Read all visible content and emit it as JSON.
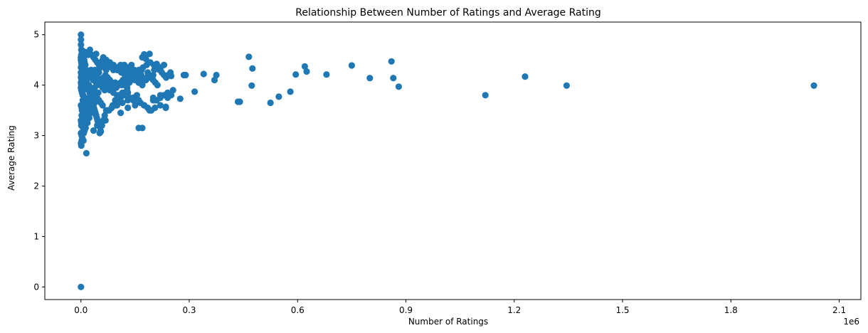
{
  "chart_data": {
    "type": "scatter",
    "title": "Relationship Between Number of Ratings and Average Rating",
    "xlabel": "Number of Ratings",
    "ylabel": "Average Rating",
    "x_offset_label": "1e6",
    "xlim": [
      -0.1,
      2.16
    ],
    "ylim": [
      -0.25,
      5.25
    ],
    "x_ticks": [
      0.0,
      0.3,
      0.6,
      0.9,
      1.2,
      1.5,
      1.8,
      2.1
    ],
    "x_tick_labels": [
      "0.0",
      "0.3",
      "0.6",
      "0.9",
      "1.2",
      "1.5",
      "1.8",
      "2.1"
    ],
    "y_ticks": [
      0,
      1,
      2,
      3,
      4,
      5
    ],
    "y_tick_labels": [
      "0",
      "1",
      "2",
      "3",
      "4",
      "5"
    ],
    "grid": false,
    "marker_color": "#1f77b4",
    "series": [
      {
        "x": [
          0.0,
          0.0,
          0.0,
          0.0,
          0.001,
          0.002,
          0.003,
          0.005,
          0.008,
          0.012,
          0.02,
          0.004,
          0.006,
          0.009,
          0.01,
          0.001,
          0.002,
          0.015,
          0.025,
          0.03,
          0.035,
          0.04,
          0.045,
          0.05,
          0.055,
          0.06,
          0.065,
          0.07,
          0.075,
          0.08,
          0.085,
          0.09,
          0.095,
          0.1,
          0.105,
          0.11,
          0.115,
          0.12,
          0.125,
          0.13,
          0.135,
          0.14,
          0.002,
          0.004,
          0.006,
          0.008,
          0.01,
          0.012,
          0.014,
          0.016,
          0.018,
          0.02,
          0.022,
          0.024,
          0.026,
          0.028,
          0.03,
          0.032,
          0.034,
          0.036,
          0.038,
          0.04,
          0.042,
          0.044,
          0.046,
          0.048,
          0.05,
          0.01,
          0.02,
          0.03,
          0.04,
          0.05,
          0.06,
          0.07,
          0.08,
          0.09,
          0.1,
          0.11,
          0.12,
          0.13,
          0.015,
          0.025,
          0.035,
          0.045,
          0.055,
          0.065,
          0.075,
          0.085,
          0.001,
          0.003,
          0.005,
          0.007,
          0.009,
          0.011,
          0.013,
          0.001,
          0.002,
          0.003,
          0.004,
          0.005,
          0.006,
          0.007,
          0.008,
          0.009,
          0.01,
          0.011,
          0.012,
          0.013,
          0.014,
          0.016,
          0.018,
          0.022,
          0.026,
          0.03,
          0.034,
          0.038,
          0.042,
          0.046,
          0.05,
          0.054,
          0.058,
          0.062,
          0.066,
          0.07,
          0.002,
          0.006,
          0.01,
          0.014,
          0.018,
          0.022,
          0.026,
          0.03,
          0.034,
          0.038,
          0.042,
          0.046,
          0.05,
          0.054,
          0.058,
          0.062,
          0.003,
          0.008,
          0.013,
          0.018,
          0.023,
          0.028,
          0.033,
          0.038,
          0.043,
          0.048,
          0.004,
          0.009,
          0.014,
          0.019,
          0.024,
          0.029,
          0.034,
          0.039,
          0.0,
          0.001,
          0.002,
          0.004,
          0.007,
          0.012,
          0.02,
          0.028,
          0.0,
          0.001,
          0.003,
          0.006,
          0.011,
          0.017,
          0.024,
          0.0,
          0.002,
          0.005,
          0.009,
          0.014,
          0.02,
          0.0,
          0.001,
          0.003,
          0.006,
          0.01,
          0.0,
          0.002,
          0.004,
          0.007,
          0.0,
          0.001,
          0.003,
          0.0,
          0.001,
          0.0,
          0.0,
          0.0,
          0.0,
          0.001,
          0.003,
          0.001,
          0.002,
          0.006,
          0.012,
          0.015,
          0.005,
          0.02,
          0.025,
          0.03,
          0.035,
          0.04,
          0.045,
          0.05,
          0.055,
          0.06,
          0.065,
          0.07,
          0.028,
          0.032,
          0.036,
          0.042,
          0.048,
          0.054,
          0.06,
          0.066,
          0.072,
          0.078,
          0.022,
          0.027,
          0.033,
          0.038,
          0.044,
          0.05,
          0.056,
          0.062,
          0.068,
          0.074,
          0.08,
          0.086,
          0.092,
          0.098,
          0.104,
          0.11,
          0.116,
          0.122,
          0.128,
          0.134,
          0.14,
          0.146,
          0.152,
          0.158,
          0.164,
          0.17,
          0.176,
          0.182,
          0.188,
          0.194,
          0.2,
          0.206,
          0.212,
          0.218,
          0.224,
          0.23,
          0.236,
          0.242,
          0.248,
          0.09,
          0.1,
          0.11,
          0.12,
          0.13,
          0.14,
          0.15,
          0.16,
          0.17,
          0.18,
          0.19,
          0.2,
          0.21,
          0.22,
          0.23,
          0.24,
          0.095,
          0.105,
          0.115,
          0.125,
          0.135,
          0.145,
          0.155,
          0.165,
          0.175,
          0.185,
          0.195,
          0.085,
          0.1,
          0.115,
          0.13,
          0.145,
          0.16,
          0.175,
          0.19,
          0.205,
          0.22,
          0.235,
          0.078,
          0.088,
          0.098,
          0.108,
          0.118,
          0.128,
          0.138,
          0.148,
          0.158,
          0.168,
          0.072,
          0.082,
          0.092,
          0.102,
          0.112,
          0.122,
          0.132,
          0.142,
          0.152,
          0.162,
          0.172,
          0.182,
          0.192,
          0.202,
          0.212,
          0.095,
          0.105,
          0.075,
          0.065,
          0.058,
          0.048,
          0.052,
          0.068,
          0.11,
          0.13,
          0.15,
          0.17,
          0.2,
          0.22,
          0.24,
          0.25,
          0.23,
          0.21,
          0.19,
          0.17,
          0.18,
          0.16,
          0.14,
          0.12,
          0.1,
          0.095,
          0.113,
          0.131,
          0.149,
          0.167,
          0.185,
          0.203,
          0.221,
          0.025,
          0.042,
          0.015,
          0.035,
          0.045,
          0.055,
          0.065,
          0.015,
          0.005,
          0.285,
          0.34,
          0.37,
          0.375,
          0.465,
          0.475,
          0.62,
          0.595,
          0.625,
          0.68,
          0.75,
          0.8,
          0.86,
          0.865,
          0.88,
          0.235,
          0.29,
          0.473,
          0.58,
          0.548,
          0.525,
          0.44,
          0.435,
          0.315,
          0.275,
          0.25,
          0.255,
          0.205,
          0.2,
          0.16,
          0.175,
          1.12,
          1.23,
          1.345,
          2.03
        ],
        "y": [
          5.0,
          4.9,
          4.8,
          0.0,
          4.7,
          4.6,
          4.55,
          4.5,
          4.45,
          4.4,
          4.6,
          4.65,
          4.55,
          4.5,
          4.45,
          2.8,
          2.9,
          2.65,
          4.7,
          4.6,
          4.55,
          4.5,
          4.45,
          4.4,
          4.45,
          4.5,
          4.45,
          4.5,
          4.4,
          4.45,
          4.35,
          4.4,
          4.35,
          4.3,
          4.35,
          4.4,
          4.35,
          4.4,
          4.3,
          4.35,
          4.3,
          4.4,
          4.4,
          4.35,
          4.3,
          4.25,
          4.2,
          4.15,
          4.1,
          4.05,
          4.0,
          3.95,
          3.9,
          3.85,
          3.8,
          3.75,
          3.7,
          3.65,
          3.6,
          3.55,
          3.5,
          3.45,
          3.4,
          3.35,
          3.3,
          3.25,
          3.2,
          4.25,
          4.2,
          4.15,
          4.1,
          4.05,
          4.0,
          3.95,
          3.9,
          3.85,
          3.8,
          3.75,
          3.8,
          3.85,
          4.3,
          4.25,
          4.2,
          4.15,
          4.1,
          4.05,
          4.0,
          3.95,
          4.0,
          3.9,
          3.8,
          3.7,
          3.6,
          3.5,
          3.4,
          3.3,
          3.4,
          3.5,
          3.6,
          3.7,
          3.8,
          3.9,
          4.0,
          4.1,
          4.2,
          4.3,
          4.4,
          4.3,
          4.2,
          4.1,
          4.0,
          3.9,
          3.8,
          3.7,
          3.6,
          3.5,
          3.4,
          3.3,
          3.2,
          3.1,
          3.2,
          3.3,
          3.4,
          3.5,
          3.6,
          3.2,
          3.25,
          3.35,
          3.45,
          3.55,
          3.65,
          3.75,
          3.85,
          3.95,
          4.05,
          4.15,
          4.25,
          4.35,
          4.45,
          4.55,
          4.45,
          3.05,
          3.15,
          3.25,
          3.35,
          3.45,
          3.55,
          3.65,
          3.75,
          3.85,
          3.95,
          3.1,
          3.3,
          3.5,
          3.7,
          3.9,
          4.1,
          4.3,
          4.5,
          4.0,
          4.05,
          4.1,
          4.15,
          4.2,
          4.25,
          4.3,
          4.35,
          3.9,
          3.85,
          3.8,
          3.75,
          3.7,
          3.65,
          3.6,
          3.55,
          3.5,
          3.45,
          3.4,
          3.35,
          3.3,
          3.25,
          3.2,
          3.15,
          3.1,
          3.05,
          3.0,
          2.95,
          2.9,
          2.85,
          4.45,
          4.35,
          4.25,
          3.2,
          4.15,
          4.05,
          3.95,
          4.55,
          4.6,
          4.65,
          4.2,
          4.1,
          4.3,
          4.2,
          4.1,
          4.05,
          4.0,
          3.95,
          3.9,
          3.85,
          3.8,
          3.75,
          3.7,
          3.65,
          3.6,
          4.35,
          4.3,
          4.25,
          4.2,
          4.15,
          4.1,
          4.05,
          4.0,
          3.95,
          3.9,
          4.1,
          4.05,
          4.0,
          3.95,
          3.9,
          3.95,
          4.0,
          4.05,
          4.1,
          4.15,
          4.2,
          4.15,
          4.1,
          4.05,
          4.0,
          3.95,
          4.0,
          4.05,
          4.1,
          4.0,
          3.95,
          4.05,
          4.1,
          4.15,
          4.2,
          4.15,
          4.1,
          4.05,
          4.1,
          4.15,
          4.2,
          4.15,
          4.1,
          4.05,
          4.0,
          4.3,
          4.25,
          4.2,
          4.15,
          4.2,
          4.25,
          4.3,
          4.35,
          4.3,
          4.25,
          4.2,
          4.15,
          4.1,
          4.05,
          4.0,
          4.1,
          4.15,
          4.2,
          3.7,
          3.75,
          3.8,
          3.75,
          3.7,
          3.8,
          3.85,
          3.8,
          3.75,
          3.7,
          3.8,
          3.65,
          3.6,
          3.55,
          3.5,
          3.55,
          3.6,
          3.65,
          3.7,
          3.75,
          3.7,
          3.6,
          3.5,
          3.55,
          3.6,
          3.55,
          3.5,
          3.6,
          3.7,
          3.8,
          3.85,
          3.9,
          4.35,
          4.3,
          4.25,
          4.3,
          4.35,
          4.4,
          4.35,
          4.3,
          4.25,
          4.2,
          4.15,
          4.2,
          4.25,
          4.3,
          4.35,
          4.4,
          4.45,
          4.4,
          4.35,
          3.6,
          3.7,
          3.5,
          3.3,
          3.2,
          3.25,
          3.05,
          3.3,
          3.45,
          3.55,
          3.6,
          3.15,
          3.7,
          3.8,
          3.85,
          4.18,
          4.4,
          4.42,
          4.62,
          4.55,
          4.52,
          4.3,
          4.2,
          4.22,
          4.35,
          4.05,
          4.0,
          4.1,
          4.15,
          4.2,
          4.25,
          4.3,
          4.35,
          3.55,
          4.62,
          4.65,
          3.1,
          3.2,
          3.08,
          3.33,
          3.25,
          4.68,
          4.2,
          4.22,
          4.1,
          4.2,
          4.56,
          4.33,
          4.37,
          4.21,
          4.27,
          4.21,
          4.39,
          4.14,
          4.47,
          4.14,
          3.97,
          3.57,
          4.2,
          3.99,
          3.87,
          3.77,
          3.65,
          3.67,
          3.67,
          3.87,
          3.73,
          3.8,
          3.9,
          3.7,
          3.75,
          3.15,
          4.61,
          3.8,
          4.17,
          3.99,
          3.99
        ]
      }
    ]
  }
}
